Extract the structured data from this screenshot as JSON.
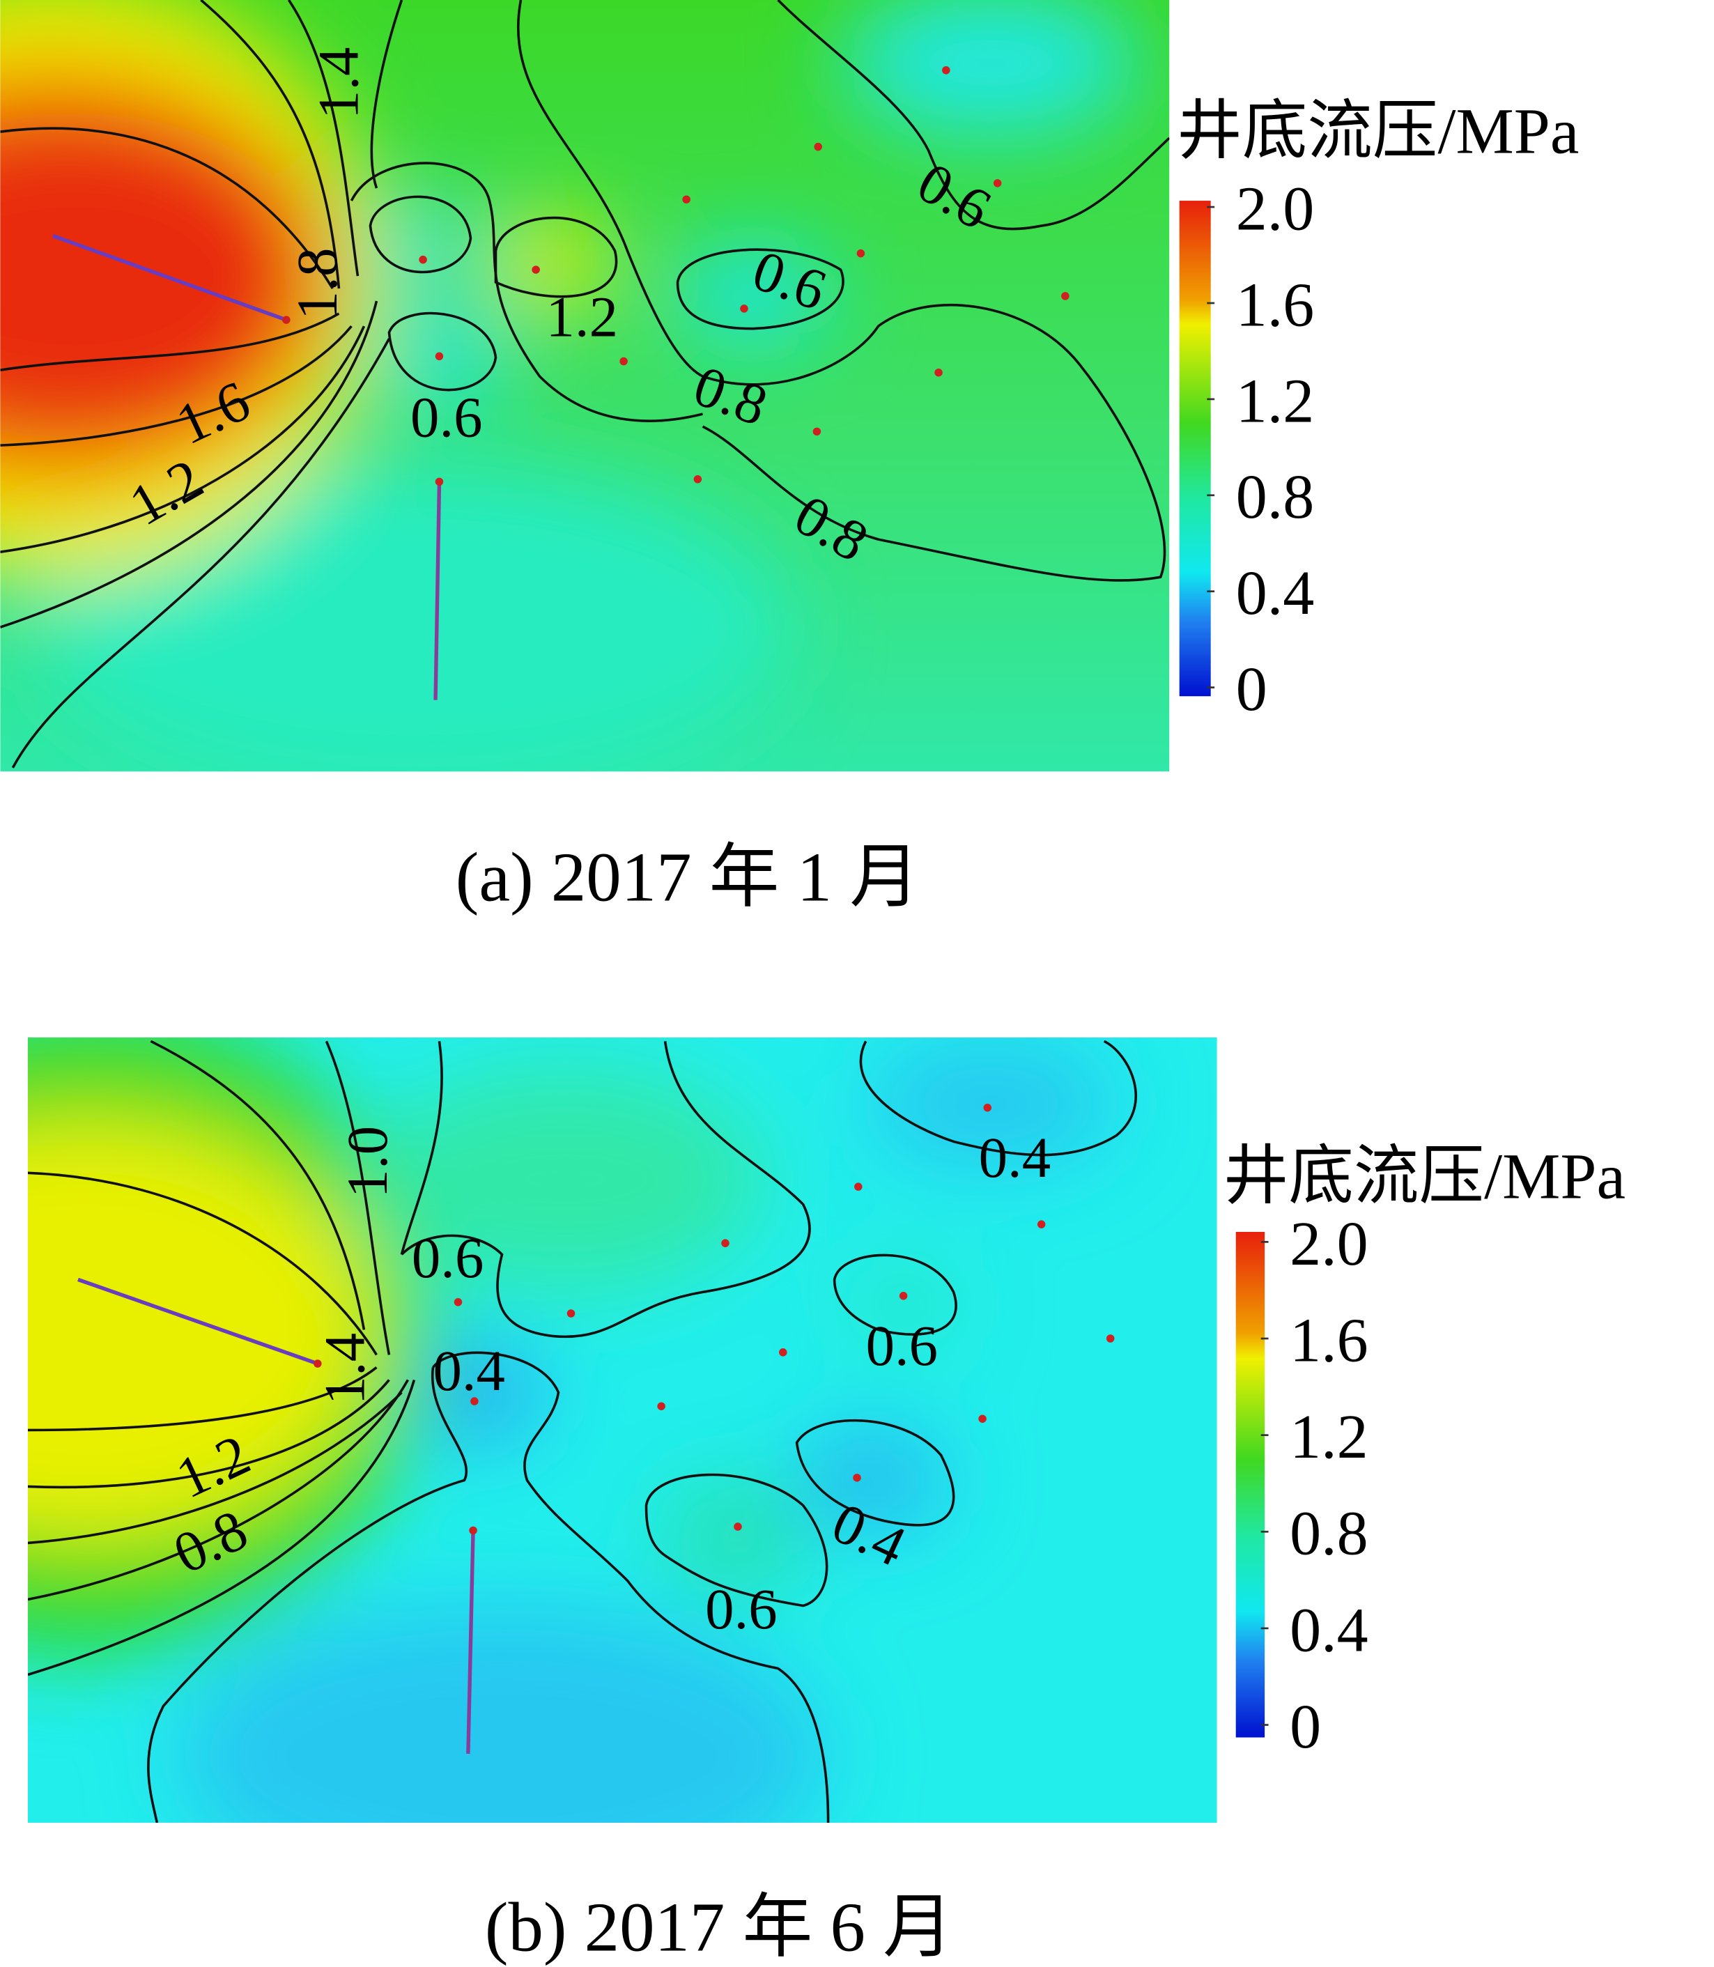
{
  "chart_data": [
    {
      "type": "heatmap",
      "title": "(a) 2017 年 1 月",
      "colorbar": {
        "label": "井底流压/MPa",
        "ticks": [
          "2.0",
          "1.6",
          "1.2",
          "0.8",
          "0.4",
          "0"
        ],
        "range": [
          0,
          2.0
        ]
      },
      "contour_labels": [
        "1.4",
        "1.8",
        "1.6",
        "1.2",
        "0.6",
        "1.2",
        "0.6",
        "0.8",
        "0.6",
        "0.8"
      ],
      "colors": {
        "high": "#e8200c",
        "mid_high": "#f0f000",
        "mid": "#30d820",
        "low_mid": "#20f0e0",
        "low": "#0010d0"
      }
    },
    {
      "type": "heatmap",
      "title": "(b) 2017 年 6 月",
      "colorbar": {
        "label": "井底流压/MPa",
        "ticks": [
          "2.0",
          "1.6",
          "1.2",
          "0.8",
          "0.4",
          "0"
        ],
        "range": [
          0,
          2.0
        ]
      },
      "contour_labels": [
        "1.0",
        "0.6",
        "1.4",
        "0.4",
        "1.2",
        "0.8",
        "0.4",
        "0.6",
        "0.4",
        "0.6"
      ],
      "colors": {
        "high": "#e8200c",
        "mid_high": "#f0f000",
        "mid": "#30d820",
        "low_mid": "#20f0e0",
        "low": "#0010d0"
      }
    }
  ]
}
